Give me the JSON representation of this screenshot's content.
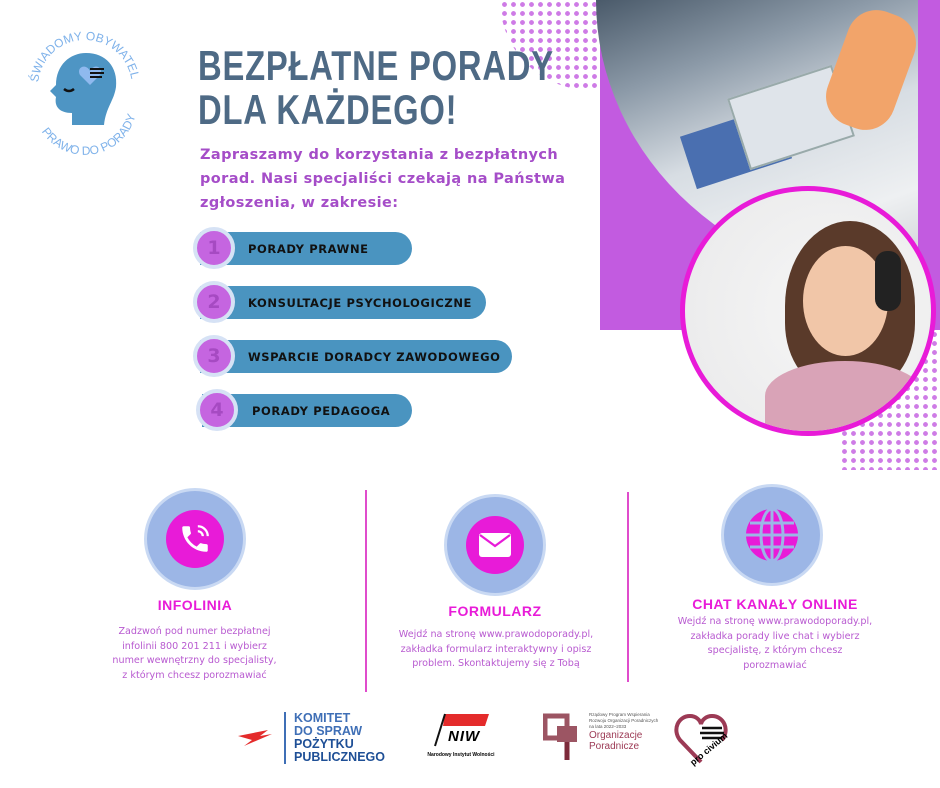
{
  "logo": {
    "top_text": "ŚWIADOMY OBYWATEL",
    "bottom_text": "PRAWO DO PORADY"
  },
  "title": {
    "line1": "BEZPŁATNE PORADY",
    "line2": "DLA KAŻDEGO!"
  },
  "intro": "Zapraszamy do korzystania z bezpłatnych porad. Nasi specjaliści czekają na Państwa zgłoszenia, w zakresie:",
  "services": [
    {
      "number": "1",
      "label": "PORADY PRAWNE"
    },
    {
      "number": "2",
      "label": "KONSULTACJE PSYCHOLOGICZNE"
    },
    {
      "number": "3",
      "label": "WSPARCIE DORADCY ZAWODOWEGO"
    },
    {
      "number": "4",
      "label": "PORADY PEDAGOGA"
    }
  ],
  "contact": [
    {
      "icon": "phone-icon",
      "title": "INFOLINIA",
      "text": "Zadzwoń pod numer bezpłatnej infolinii 800 201 211 i wybierz numer wewnętrzny do specjalisty, z którym chcesz porozmawiać"
    },
    {
      "icon": "envelope-icon",
      "title": "FORMULARZ",
      "text": "Wejdź na stronę www.prawodoporady.pl, zakładka formularz interaktywny i opisz problem. Skontaktujemy się z Tobą"
    },
    {
      "icon": "globe-icon",
      "title": "CHAT KANAŁY ONLINE",
      "text": "Wejdź na stronę www.prawodoporady.pl, zakładka porady live chat i wybierz specjalistę, z którym chcesz porozmawiać"
    }
  ],
  "sponsors": {
    "kpp": [
      "KOMITET",
      "DO SPRAW",
      "POŻYTKU",
      "PUBLICZNEGO"
    ],
    "niw": {
      "mark": "NIW",
      "name": "Narodowy Instytut Wolności"
    },
    "rp": {
      "small": "Rządowy Program Wspierania Rozwoju Organizacji Poradniczych na lata 2022–2033",
      "name1": "Organizacje",
      "name2": "Poradnicze"
    },
    "procivium": "pro civium"
  },
  "colors": {
    "title": "#4e6a85",
    "accent": "#e81bd8",
    "purple": "#a54dc8",
    "pill": "#4a94c0",
    "icon_bg": "#9cb6e6"
  }
}
